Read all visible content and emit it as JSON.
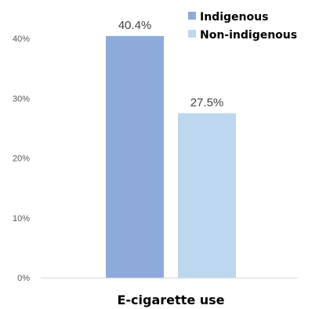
{
  "chart_data": {
    "type": "bar",
    "categories": [
      "E-cigarette use"
    ],
    "series": [
      {
        "name": "Indigenous",
        "values": [
          40.4
        ],
        "label": "40.4%",
        "color": "#8eaadb"
      },
      {
        "name": "Non-indigenous",
        "values": [
          27.5
        ],
        "label": "27.5%",
        "color": "#bdd7ee"
      }
    ],
    "ylim": [
      0,
      40
    ],
    "yticks": [
      {
        "value": 0,
        "label": "0%"
      },
      {
        "value": 10,
        "label": "10%"
      },
      {
        "value": 20,
        "label": "20%"
      },
      {
        "value": 30,
        "label": "30%"
      },
      {
        "value": 40,
        "label": "40%"
      }
    ],
    "xlabel": "E-cigarette use",
    "grid": false,
    "legend_position": "top-right",
    "axis_color": "#d9d9d9"
  }
}
